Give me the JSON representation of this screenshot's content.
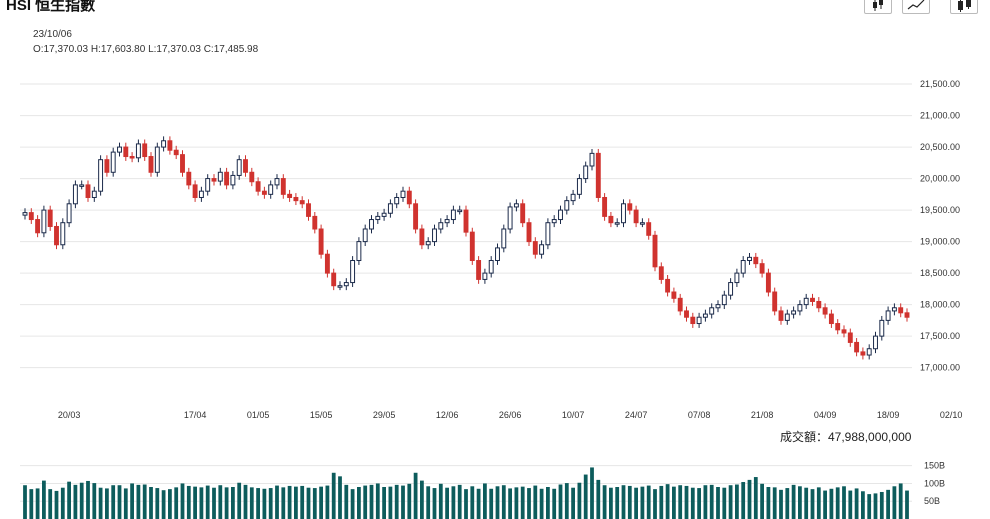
{
  "header": {
    "title": "HSI 恒生指數",
    "date": "23/10/06",
    "ohlc": "O:17,370.03  H:17,603.80  L:17,370.03  C:17,485.98"
  },
  "toolbar": [
    {
      "name": "candlestick-view-button",
      "icon": "candlestick-icon"
    },
    {
      "name": "line-view-button",
      "icon": "line-chart-icon"
    },
    {
      "name": "bar-view-button",
      "icon": "ohlc-bars-icon"
    }
  ],
  "volume": {
    "label": "成交額：47,988,000,000"
  },
  "colors": {
    "up": "#1b2a4a",
    "down": "#d0332f",
    "volume": "#0d5c5c",
    "grid": "#e6e6e6"
  },
  "chart_data": {
    "type": "candlestick",
    "y_ticks": [
      "21,500.00",
      "21,000.00",
      "20,500.00",
      "20,000.00",
      "19,500.00",
      "19,000.00",
      "18,500.00",
      "18,000.00",
      "17,500.00",
      "17,000.00"
    ],
    "y_tick_values": [
      21500,
      21000,
      20500,
      20000,
      19500,
      19000,
      18500,
      18000,
      17500,
      17000
    ],
    "ylim": [
      16550,
      21850
    ],
    "x_ticks": [
      "20/03",
      "17/04",
      "01/05",
      "15/05",
      "29/05",
      "12/06",
      "26/06",
      "10/07",
      "24/07",
      "07/08",
      "21/08",
      "04/09",
      "18/09",
      "02/10"
    ],
    "x_tick_index": [
      7,
      27,
      37,
      47,
      57,
      67,
      77,
      87,
      97,
      107,
      117,
      127,
      137,
      147
    ],
    "volume_ticks": [
      "150B",
      "100B",
      "50B"
    ],
    "volume_tick_values": [
      150,
      100,
      50
    ],
    "close": [
      19460,
      19350,
      19140,
      19500,
      19240,
      18950,
      19300,
      19600,
      19900,
      19900,
      19700,
      19800,
      20300,
      20100,
      20420,
      20500,
      20350,
      20330,
      20550,
      20350,
      20100,
      20500,
      20600,
      20450,
      20380,
      20100,
      19900,
      19700,
      19800,
      20000,
      19960,
      20100,
      19900,
      20050,
      20300,
      20100,
      19950,
      19800,
      19750,
      19900,
      20000,
      19750,
      19700,
      19650,
      19600,
      19400,
      19200,
      18800,
      18500,
      18300,
      18300,
      18350,
      18700,
      19000,
      19200,
      19350,
      19400,
      19450,
      19600,
      19700,
      19800,
      19600,
      19200,
      18950,
      19000,
      19200,
      19300,
      19350,
      19500,
      19500,
      19150,
      18700,
      18400,
      18500,
      18700,
      18900,
      19200,
      19550,
      19600,
      19300,
      19000,
      18800,
      18950,
      19300,
      19350,
      19500,
      19650,
      19750,
      20000,
      20200,
      20400,
      19700,
      19400,
      19300,
      19300,
      19600,
      19500,
      19300,
      19300,
      19100,
      18600,
      18400,
      18200,
      18100,
      17900,
      17800,
      17700,
      17800,
      17850,
      17950,
      18000,
      18150,
      18350,
      18500,
      18700,
      18750,
      18650,
      18500,
      18200,
      17900,
      17750,
      17850,
      17900,
      18000,
      18100,
      18050,
      17950,
      17850,
      17700,
      17600,
      17550,
      17400,
      17250,
      17200,
      17300,
      17500,
      17750,
      17900,
      17950,
      17870,
      17800
    ],
    "volume_values": [
      95,
      84,
      86,
      108,
      84,
      79,
      88,
      105,
      96,
      102,
      107,
      101,
      88,
      86,
      95,
      95,
      86,
      100,
      96,
      97,
      90,
      87,
      81,
      84,
      89,
      100,
      93,
      91,
      89,
      94,
      88,
      95,
      89,
      90,
      102,
      96,
      89,
      87,
      85,
      87,
      94,
      89,
      93,
      91,
      93,
      88,
      87,
      91,
      94,
      130,
      120,
      96,
      84,
      90,
      94,
      96,
      100,
      90,
      91,
      96,
      94,
      99,
      130,
      108,
      92,
      87,
      99,
      88,
      92,
      96,
      84,
      92,
      85,
      100,
      85,
      92,
      95,
      86,
      89,
      91,
      87,
      94,
      85,
      90,
      85,
      97,
      101,
      88,
      102,
      125,
      145,
      110,
      95,
      88,
      90,
      95,
      93,
      88,
      91,
      94,
      84,
      93,
      98,
      91,
      95,
      93,
      88,
      87,
      95,
      96,
      90,
      88,
      95,
      97,
      104,
      110,
      118,
      99,
      90,
      89,
      82,
      87,
      96,
      92,
      88,
      84,
      89,
      80,
      85,
      89,
      92,
      80,
      86,
      78,
      70,
      72,
      76,
      82,
      92,
      100,
      80
    ]
  }
}
